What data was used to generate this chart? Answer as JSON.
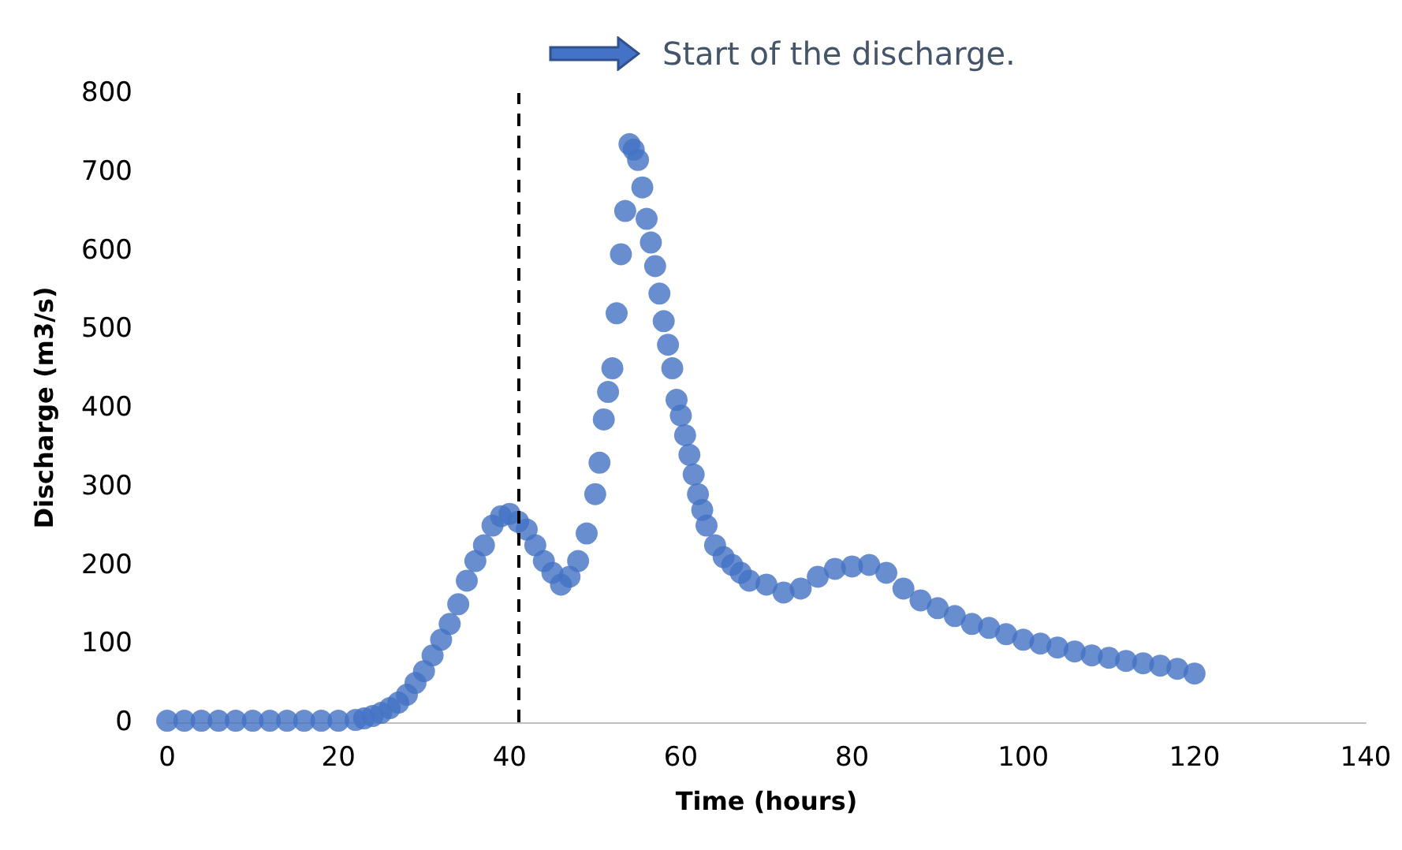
{
  "chart_data": {
    "type": "scatter",
    "xlabel": "Time (hours)",
    "ylabel": "Discharge (m3/s)",
    "annotations": [
      "Start of the discharge."
    ],
    "x": [
      0,
      2,
      4,
      6,
      8,
      10,
      12,
      14,
      16,
      18,
      20,
      22,
      23,
      24,
      25,
      26,
      27,
      28,
      29,
      30,
      31,
      32,
      33,
      34,
      35,
      36,
      37,
      38,
      39,
      40,
      41,
      42,
      43,
      44,
      45,
      46,
      47,
      48,
      49,
      50,
      50.5,
      51,
      51.5,
      52,
      52.5,
      53,
      53.5,
      54,
      54.5,
      55,
      55.5,
      56,
      56.5,
      57,
      57.5,
      58,
      58.5,
      59,
      59.5,
      60,
      60.5,
      61,
      61.5,
      62,
      62.5,
      63,
      64,
      65,
      66,
      67,
      68,
      70,
      72,
      74,
      76,
      78,
      80,
      82,
      84,
      86,
      88,
      90,
      92,
      94,
      96,
      98,
      100,
      102,
      104,
      106,
      108,
      110,
      112,
      114,
      116,
      118,
      120
    ],
    "series": [
      {
        "color": "#4472c4",
        "values": [
          2,
          2,
          2,
          2,
          2,
          2,
          2,
          2,
          2,
          2,
          2,
          3,
          5,
          8,
          12,
          18,
          25,
          35,
          50,
          65,
          85,
          105,
          125,
          150,
          180,
          205,
          225,
          250,
          262,
          265,
          255,
          245,
          225,
          205,
          190,
          175,
          185,
          205,
          240,
          290,
          330,
          385,
          420,
          450,
          520,
          595,
          650,
          735,
          728,
          715,
          680,
          640,
          610,
          580,
          545,
          510,
          480,
          450,
          410,
          390,
          365,
          340,
          315,
          290,
          270,
          250,
          225,
          210,
          200,
          190,
          180,
          175,
          165,
          170,
          185,
          195,
          198,
          200,
          190,
          170,
          155,
          145,
          135,
          125,
          120,
          112,
          105,
          100,
          95,
          90,
          85,
          82,
          78,
          75,
          72,
          68,
          62
        ]
      }
    ],
    "xlim": [
      0,
      140
    ],
    "xticks": [
      0,
      20,
      40,
      60,
      80,
      100,
      120,
      140
    ],
    "ylim": [
      0,
      800
    ],
    "yticks": [
      0,
      100,
      200,
      300,
      400,
      500,
      600,
      700,
      800
    ],
    "grid": false,
    "marker": "circle",
    "ref_lines": [
      {
        "axis": "x",
        "value": 41,
        "color": "#000000",
        "line_style": "dashed"
      }
    ]
  }
}
